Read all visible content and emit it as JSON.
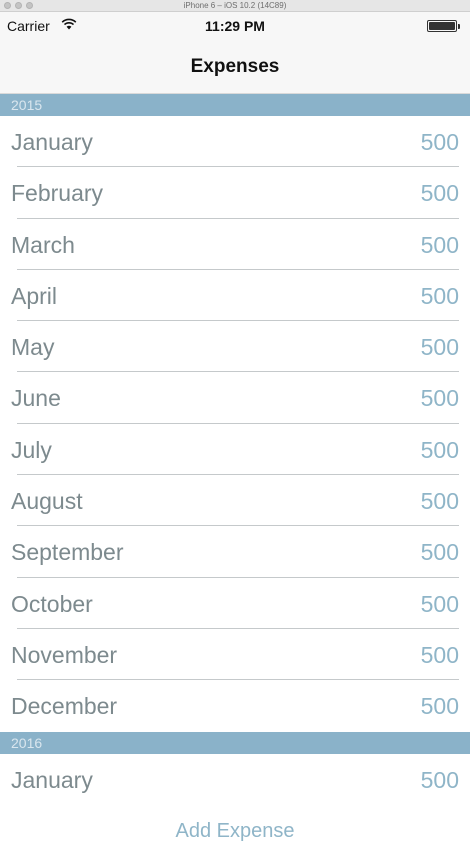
{
  "window": {
    "title": "iPhone 6 – iOS 10.2 (14C89)"
  },
  "status_bar": {
    "carrier": "Carrier",
    "time": "11:29 PM"
  },
  "nav": {
    "title": "Expenses"
  },
  "sections": [
    {
      "year": "2015",
      "rows": [
        {
          "month": "January",
          "amount": "500"
        },
        {
          "month": "February",
          "amount": "500"
        },
        {
          "month": "March",
          "amount": "500"
        },
        {
          "month": "April",
          "amount": "500"
        },
        {
          "month": "May",
          "amount": "500"
        },
        {
          "month": "June",
          "amount": "500"
        },
        {
          "month": "July",
          "amount": "500"
        },
        {
          "month": "August",
          "amount": "500"
        },
        {
          "month": "September",
          "amount": "500"
        },
        {
          "month": "October",
          "amount": "500"
        },
        {
          "month": "November",
          "amount": "500"
        },
        {
          "month": "December",
          "amount": "500"
        }
      ]
    },
    {
      "year": "2016",
      "rows": [
        {
          "month": "January",
          "amount": "500"
        }
      ]
    }
  ],
  "add_button": {
    "label": "Add Expense"
  },
  "colors": {
    "section_header_bg": "#8ab2c9",
    "month_text": "#7d8a8e",
    "amount_text": "#8fb5c8",
    "accent": "#8fb5c8"
  }
}
